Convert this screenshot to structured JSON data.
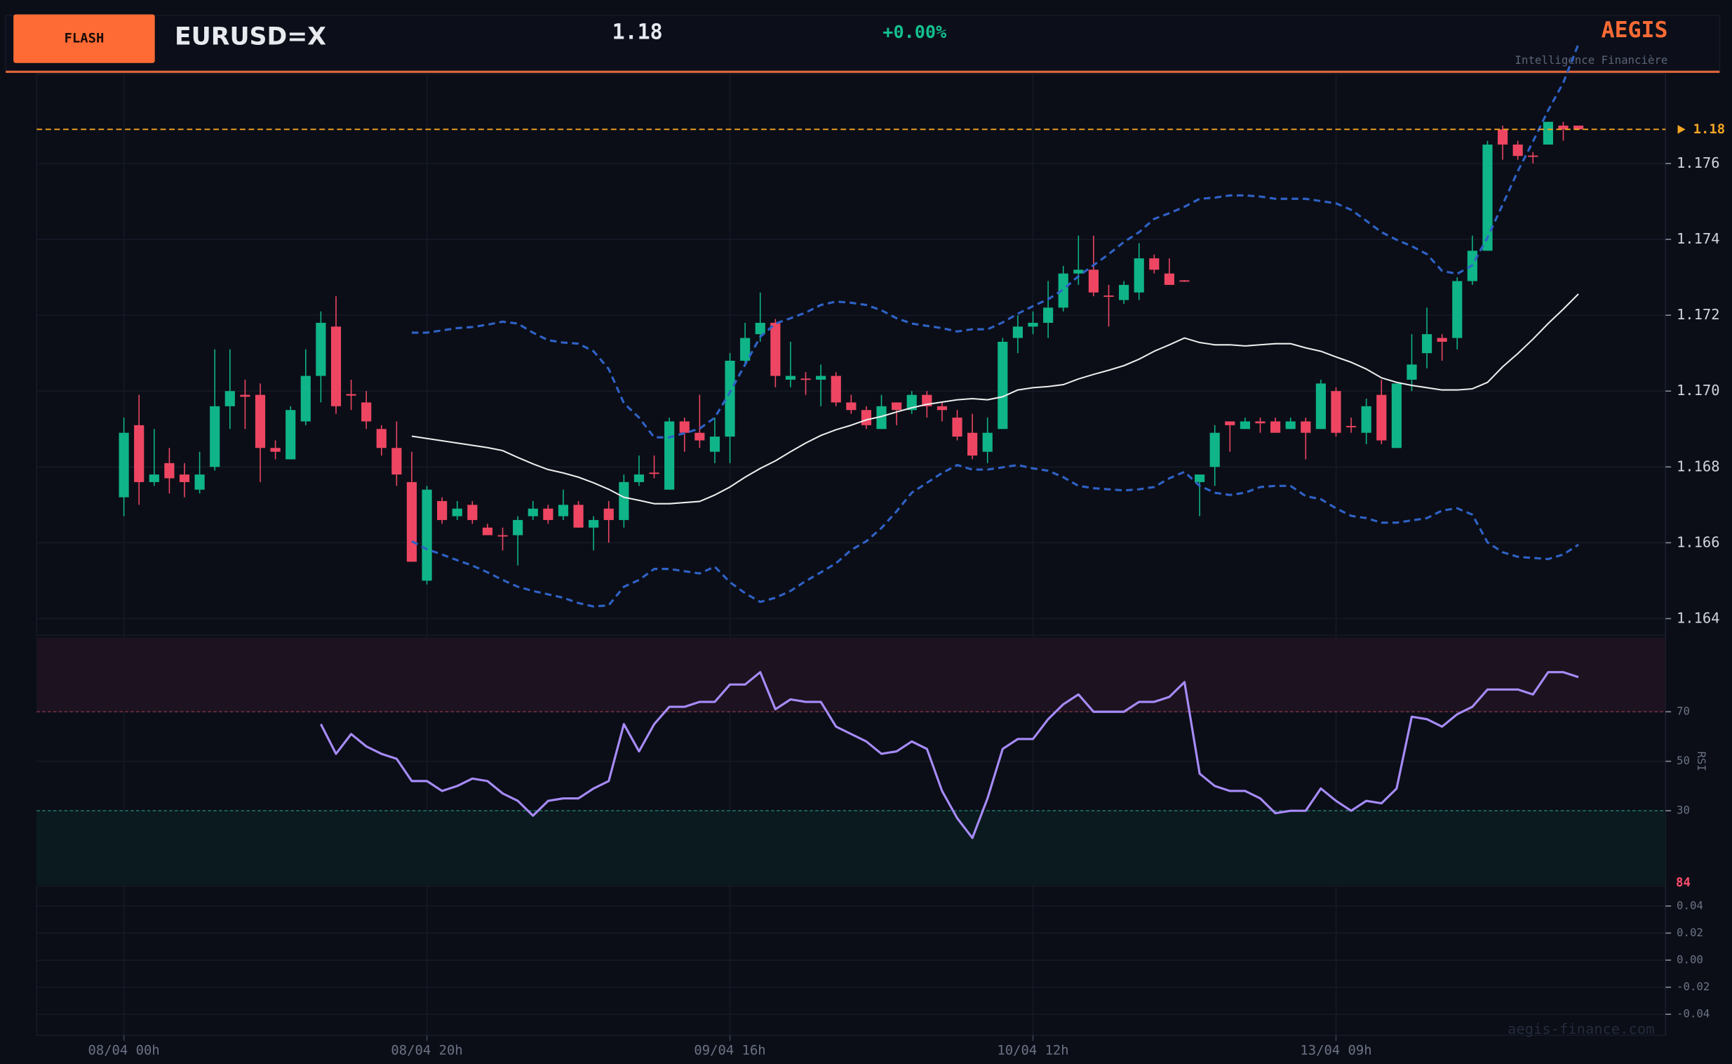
{
  "header": {
    "button": "FLASH",
    "symbol": "EURUSD=X",
    "price": "1.18",
    "change": "+0.00%",
    "brand": "AEGIS",
    "tagline": "Intelligence Financière",
    "watermark": "aegis-finance.com"
  },
  "chart_data": [
    {
      "type": "candlestick",
      "categories": [
        "08/04 00h",
        null,
        null,
        null,
        null,
        null,
        null,
        null,
        null,
        null,
        null,
        null,
        null,
        null,
        null,
        null,
        null,
        null,
        null,
        null,
        "08/04 20h",
        null,
        null,
        null,
        null,
        null,
        null,
        null,
        null,
        null,
        null,
        null,
        null,
        null,
        null,
        null,
        null,
        null,
        null,
        null,
        "09/04 16h",
        null,
        null,
        null,
        null,
        null,
        null,
        null,
        null,
        null,
        null,
        null,
        null,
        null,
        null,
        null,
        null,
        null,
        null,
        null,
        "10/04 12h",
        null,
        null,
        null,
        null,
        null,
        null,
        null,
        null,
        null,
        null,
        null,
        null,
        null,
        null,
        null,
        null,
        null,
        null,
        null,
        "13/04 09h",
        null,
        null,
        null,
        null,
        null,
        null,
        null,
        null,
        null,
        null,
        null,
        null,
        null,
        null,
        null,
        null
      ],
      "open": [
        1.1672,
        1.1691,
        1.1676,
        1.1681,
        1.1678,
        1.1674,
        1.168,
        1.1696,
        1.1699,
        1.1699,
        1.1685,
        1.1682,
        1.1692,
        1.1704,
        1.1717,
        1.16992,
        1.1697,
        1.169,
        1.1685,
        1.1676,
        1.165,
        1.1671,
        1.1667,
        1.167,
        1.1664,
        1.1662,
        1.1662,
        1.1667,
        1.1669,
        1.1667,
        1.167,
        1.1664,
        1.1669,
        1.1666,
        1.1676,
        1.16785,
        1.1674,
        1.1692,
        1.1689,
        1.1684,
        1.1688,
        1.1708,
        1.1715,
        1.1718,
        1.1703,
        1.17033,
        1.1703,
        1.1704,
        1.1697,
        1.1695,
        1.169,
        1.1697,
        1.1695,
        1.1699,
        1.1696,
        1.1693,
        1.1689,
        1.1684,
        1.169,
        1.1714,
        1.1717,
        1.1718,
        1.1722,
        1.1731,
        1.1732,
        1.17252,
        1.1724,
        1.1726,
        1.1735,
        1.1731,
        1.17292,
        1.1676,
        1.168,
        1.1692,
        1.169,
        1.1692,
        1.1692,
        1.169,
        1.1692,
        1.169,
        1.17,
        1.16908,
        1.1689,
        1.1699,
        1.1685,
        1.1703,
        1.171,
        1.1714,
        1.1714,
        1.1729,
        1.1737,
        1.1769,
        1.1765,
        1.17621,
        1.1765,
        1.177,
        1.177
      ],
      "high": [
        1.1693,
        1.1699,
        1.169,
        1.1685,
        1.1681,
        1.1684,
        1.1711,
        1.1711,
        1.1703,
        1.1702,
        1.1687,
        1.1696,
        1.1711,
        1.1721,
        1.1725,
        1.1703,
        1.17,
        1.1691,
        1.1692,
        1.1684,
        1.1675,
        1.1672,
        1.1671,
        1.1671,
        1.1665,
        1.1664,
        1.1667,
        1.1671,
        1.167,
        1.1674,
        1.1671,
        1.1667,
        1.1671,
        1.1678,
        1.1683,
        1.1683,
        1.1693,
        1.1693,
        1.1699,
        1.1693,
        1.171,
        1.1718,
        1.1726,
        1.1719,
        1.1713,
        1.1705,
        1.1707,
        1.1705,
        1.1699,
        1.1696,
        1.1699,
        1.1697,
        1.17,
        1.17,
        1.1697,
        1.1695,
        1.1694,
        1.1693,
        1.1714,
        1.172,
        1.1721,
        1.1729,
        1.1733,
        1.1741,
        1.1741,
        1.1728,
        1.1729,
        1.1739,
        1.1736,
        1.1735,
        1.17293,
        1.1678,
        1.1691,
        1.1692,
        1.1693,
        1.1693,
        1.1693,
        1.1693,
        1.1693,
        1.1703,
        1.1701,
        1.1693,
        1.1698,
        1.1703,
        1.1702,
        1.1715,
        1.1722,
        1.1715,
        1.173,
        1.1741,
        1.1766,
        1.177,
        1.1766,
        1.1763,
        1.1771,
        1.1771,
        1.177
      ],
      "low": [
        1.1667,
        1.167,
        1.1675,
        1.1673,
        1.1672,
        1.1673,
        1.1679,
        1.169,
        1.169,
        1.1676,
        1.1682,
        1.1682,
        1.1691,
        1.1697,
        1.1694,
        1.1695,
        1.169,
        1.1683,
        1.1675,
        1.1655,
        1.1649,
        1.1665,
        1.1666,
        1.1665,
        1.1662,
        1.1658,
        1.1654,
        1.1666,
        1.1665,
        1.1666,
        1.1664,
        1.1658,
        1.166,
        1.1664,
        1.1675,
        1.1677,
        1.1674,
        1.1684,
        1.1685,
        1.1681,
        1.1681,
        1.1707,
        1.1713,
        1.1701,
        1.1701,
        1.1699,
        1.1696,
        1.1696,
        1.1694,
        1.169,
        1.169,
        1.1691,
        1.1694,
        1.1693,
        1.1692,
        1.1687,
        1.1682,
        1.1681,
        1.169,
        1.171,
        1.1715,
        1.1714,
        1.1721,
        1.1728,
        1.1725,
        1.1717,
        1.1723,
        1.1724,
        1.1731,
        1.1728,
        1.17288,
        1.1667,
        1.1675,
        1.1684,
        1.169,
        1.1689,
        1.1689,
        1.169,
        1.1682,
        1.169,
        1.1688,
        1.1689,
        1.1686,
        1.1686,
        1.1685,
        1.17,
        1.1706,
        1.1708,
        1.1711,
        1.1728,
        1.1737,
        1.1761,
        1.1761,
        1.176,
        1.1765,
        1.1766,
        1.1769
      ],
      "close": [
        1.1689,
        1.1676,
        1.1678,
        1.1677,
        1.1676,
        1.1678,
        1.1696,
        1.17,
        1.16985,
        1.1685,
        1.1684,
        1.1695,
        1.1704,
        1.1718,
        1.1696,
        1.16988,
        1.1692,
        1.1685,
        1.1678,
        1.1655,
        1.1674,
        1.1666,
        1.1669,
        1.1666,
        1.1662,
        1.16617,
        1.1666,
        1.1669,
        1.1666,
        1.167,
        1.1664,
        1.1666,
        1.1666,
        1.1676,
        1.1678,
        1.16782,
        1.1692,
        1.1689,
        1.1687,
        1.1688,
        1.1708,
        1.1714,
        1.1718,
        1.1704,
        1.1704,
        1.1703,
        1.1704,
        1.1697,
        1.1695,
        1.1691,
        1.1696,
        1.1695,
        1.1699,
        1.1696,
        1.1695,
        1.1688,
        1.1683,
        1.1689,
        1.1713,
        1.1717,
        1.1718,
        1.1722,
        1.1731,
        1.1732,
        1.1726,
        1.1725,
        1.1728,
        1.1735,
        1.1732,
        1.1728,
        1.1729,
        1.1678,
        1.1689,
        1.1691,
        1.1692,
        1.16915,
        1.1689,
        1.1692,
        1.1689,
        1.1702,
        1.1689,
        1.16905,
        1.1696,
        1.1687,
        1.1702,
        1.1707,
        1.1715,
        1.1713,
        1.1729,
        1.1737,
        1.1765,
        1.1765,
        1.1762,
        1.17618,
        1.1771,
        1.1769,
        1.1769
      ],
      "up_color": "#0fb488",
      "down_color": "#ee4662",
      "overlays": [
        {
          "color": "#2f62c6",
          "dashed": true,
          "values": [
            null,
            null,
            null,
            null,
            null,
            null,
            null,
            null,
            null,
            null,
            null,
            null,
            null,
            null,
            null,
            null,
            null,
            null,
            null,
            1.17154,
            1.17154,
            1.1716,
            1.17166,
            1.17169,
            1.17175,
            1.17183,
            1.17178,
            1.17154,
            1.17134,
            1.17128,
            1.17125,
            1.17105,
            1.17058,
            1.16968,
            1.1693,
            1.16878,
            1.16878,
            1.16889,
            1.16901,
            1.1693,
            1.16997,
            1.1707,
            1.17143,
            1.17178,
            1.17192,
            1.17207,
            1.17227,
            1.17236,
            1.17233,
            1.17227,
            1.17213,
            1.17192,
            1.17178,
            1.17172,
            1.17166,
            1.17157,
            1.17163,
            1.17163,
            1.17181,
            1.17204,
            1.17224,
            1.17242,
            1.17268,
            1.17303,
            1.17332,
            1.17361,
            1.17393,
            1.17419,
            1.17454,
            1.17469,
            1.17486,
            1.17507,
            1.1751,
            1.17516,
            1.17516,
            1.17513,
            1.17507,
            1.17507,
            1.17507,
            1.17501,
            1.17495,
            1.17478,
            1.17449,
            1.17419,
            1.17399,
            1.17382,
            1.17361,
            1.17317,
            1.17309,
            1.17332,
            1.17405,
            1.17492,
            1.1758,
            1.17658,
            1.1774,
            1.17813,
            1.17915
          ]
        },
        {
          "color": "#eeeeee",
          "dashed": false,
          "values": [
            null,
            null,
            null,
            null,
            null,
            null,
            null,
            null,
            null,
            null,
            null,
            null,
            null,
            null,
            null,
            null,
            null,
            null,
            null,
            1.16881,
            1.16875,
            1.16869,
            1.16863,
            1.16857,
            1.16851,
            1.16843,
            1.16825,
            1.16808,
            1.16793,
            1.16784,
            1.16773,
            1.16758,
            1.16741,
            1.1672,
            1.16712,
            1.16703,
            1.16703,
            1.16706,
            1.16709,
            1.16726,
            1.16747,
            1.16773,
            1.16796,
            1.16816,
            1.1684,
            1.16863,
            1.16883,
            1.16898,
            1.1691,
            1.16924,
            1.16933,
            1.16945,
            1.16956,
            1.16965,
            1.16971,
            1.16977,
            1.1698,
            1.16977,
            1.16985,
            1.17003,
            1.17009,
            1.17012,
            1.17017,
            1.17032,
            1.17044,
            1.17055,
            1.17067,
            1.17084,
            1.17105,
            1.17122,
            1.1714,
            1.17128,
            1.17122,
            1.17122,
            1.17119,
            1.17122,
            1.17125,
            1.17125,
            1.17114,
            1.17105,
            1.1709,
            1.17076,
            1.17058,
            1.17035,
            1.17023,
            1.17015,
            1.17009,
            1.17003,
            1.17003,
            1.17006,
            1.17023,
            1.17064,
            1.17099,
            1.17137,
            1.17178,
            1.17216,
            1.17256
          ]
        },
        {
          "color": "#2f62c6",
          "dashed": true,
          "values": [
            null,
            null,
            null,
            null,
            null,
            null,
            null,
            null,
            null,
            null,
            null,
            null,
            null,
            null,
            null,
            null,
            null,
            null,
            null,
            1.16604,
            1.16583,
            1.16569,
            1.16554,
            1.1654,
            1.16522,
            1.16502,
            1.16484,
            1.16473,
            1.16464,
            1.16455,
            1.16441,
            1.16432,
            1.16435,
            1.16484,
            1.16502,
            1.16531,
            1.16531,
            1.16525,
            1.16519,
            1.16537,
            1.16496,
            1.16467,
            1.16444,
            1.16455,
            1.16473,
            1.16499,
            1.16522,
            1.16546,
            1.16581,
            1.16604,
            1.16639,
            1.16683,
            1.16732,
            1.16758,
            1.16784,
            1.16805,
            1.16793,
            1.16793,
            1.16799,
            1.16805,
            1.16796,
            1.1679,
            1.16773,
            1.1675,
            1.16744,
            1.16741,
            1.16738,
            1.16741,
            1.16747,
            1.1677,
            1.16787,
            1.1675,
            1.16732,
            1.16726,
            1.16732,
            1.16747,
            1.1675,
            1.1675,
            1.16723,
            1.16715,
            1.16691,
            1.16671,
            1.16665,
            1.16653,
            1.16653,
            1.16659,
            1.16665,
            1.16685,
            1.16691,
            1.16674,
            1.16601,
            1.16575,
            1.16563,
            1.1656,
            1.16557,
            1.16569,
            1.16595
          ]
        }
      ],
      "last_price": 1.1769,
      "last_price_label": "1.18",
      "last_price_color": "#f5a623",
      "ylim": [
        1.16356,
        1.17836
      ],
      "yticks": [
        1.164,
        1.166,
        1.168,
        {
          "value": 1.17,
          "label": "1.170"
        },
        1.172,
        1.174,
        1.176
      ],
      "grid": true
    },
    {
      "type": "line",
      "ylabel": "RSI",
      "zones": true,
      "series": [
        {
          "color": "#a78bfa",
          "values": [
            null,
            null,
            null,
            null,
            null,
            null,
            null,
            null,
            null,
            null,
            null,
            null,
            null,
            65,
            53,
            61,
            56,
            53,
            51,
            42,
            42,
            38,
            40,
            43,
            42,
            37,
            34,
            28,
            34,
            35,
            35,
            39,
            42,
            65,
            54,
            65,
            72,
            72,
            74,
            74,
            81,
            81,
            86,
            71,
            75,
            74,
            74,
            64,
            61,
            58,
            53,
            54,
            58,
            55,
            38,
            27,
            19,
            35,
            55,
            59,
            59,
            67,
            73,
            77,
            70,
            70,
            70,
            74,
            74,
            76,
            82,
            45,
            40,
            38,
            38,
            35,
            29,
            30,
            30,
            39,
            34,
            30,
            34,
            33,
            39,
            68,
            67,
            64,
            69,
            72,
            79,
            79,
            79,
            77,
            86,
            86,
            84
          ]
        }
      ],
      "ylim": [
        0,
        100
      ],
      "yticks": [
        30,
        50,
        70
      ],
      "grid": true
    },
    {
      "type": "line",
      "series": [],
      "ylim": [
        -0.0555,
        0.0547
      ],
      "yticks": [
        0.04,
        0.02,
        {
          "value": 0,
          "label": "0.00"
        },
        -0.02,
        -0.04
      ],
      "grid": true
    }
  ]
}
